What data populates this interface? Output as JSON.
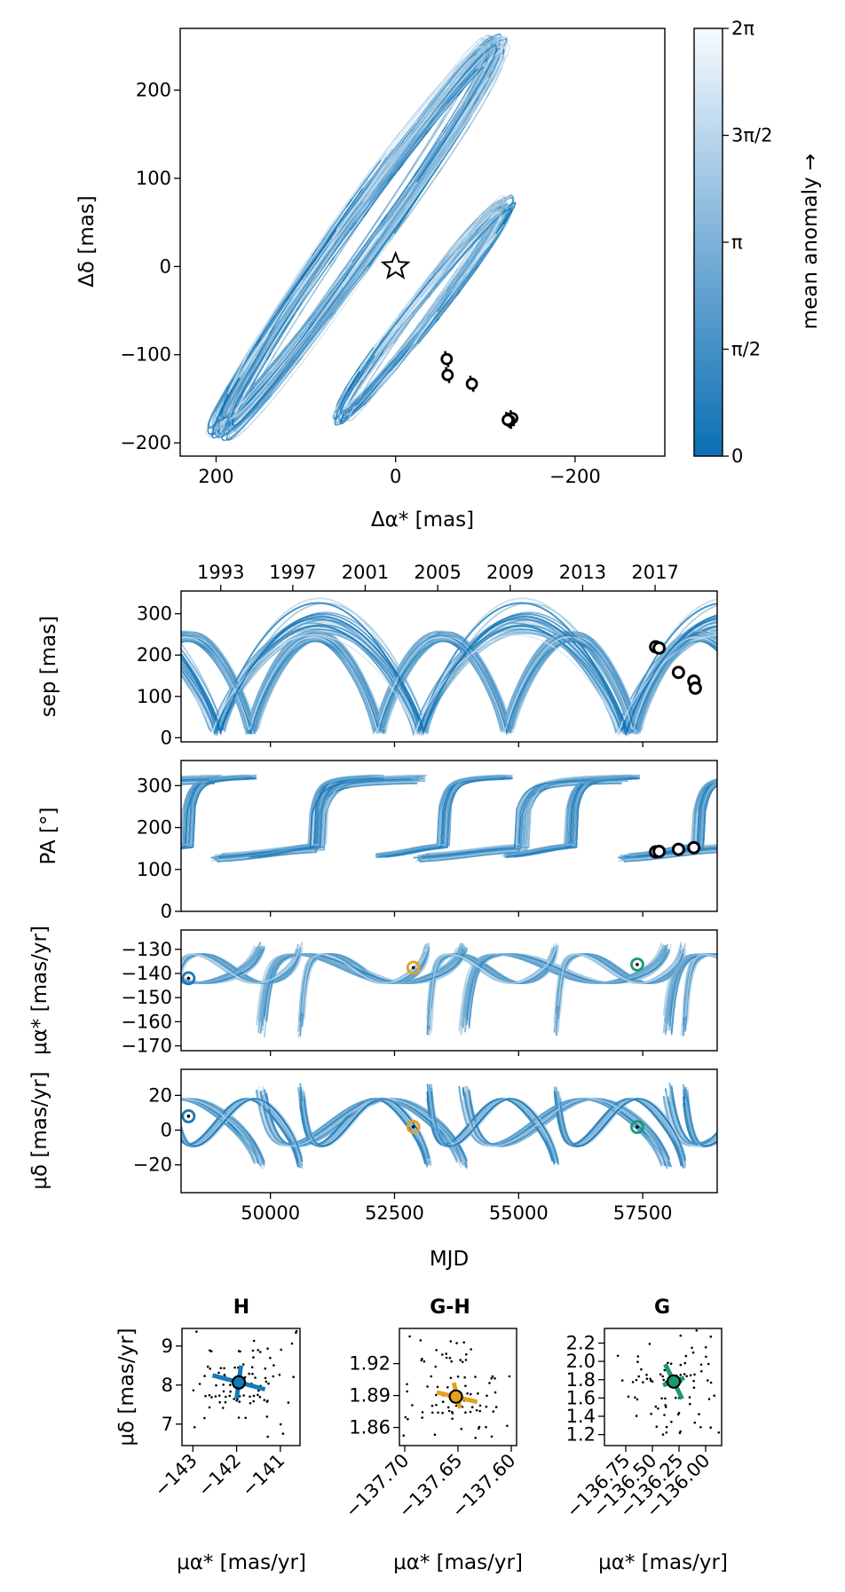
{
  "colors": {
    "orbit_dark": "#0a6fb3",
    "orbit_light": "#e9f2f9",
    "hip_blue": "#1779b8",
    "gh_orange": "#e5a11c",
    "gaia_green": "#1a9a72"
  },
  "chart_data": [
    {
      "id": "sky",
      "type": "line",
      "xlabel": "Δα* [mas]",
      "ylabel": "Δδ [mas]",
      "xlim": [
        240,
        -300
      ],
      "ylim": [
        -215,
        270
      ],
      "xticks": [
        "200",
        "0",
        "−200"
      ],
      "xtick_values": [
        200,
        0,
        -200
      ],
      "yticks": [
        "200",
        "100",
        "0",
        "−100",
        "−200"
      ],
      "ytick_values": [
        200,
        100,
        0,
        -100,
        -200
      ],
      "star": [
        0,
        0
      ],
      "astrometry_points": [
        [
          -57,
          -105
        ],
        [
          -58,
          -123
        ],
        [
          -85,
          -133
        ],
        [
          -130,
          -172
        ],
        [
          -127,
          -175
        ],
        [
          -125,
          -174
        ]
      ]
    },
    {
      "id": "colorbar",
      "type": "heatmap",
      "label": "mean anomaly →",
      "range": [
        0,
        6.2832
      ],
      "ticks": [
        "2π",
        "3π/2",
        "π",
        "π/2",
        "0"
      ],
      "tick_values": [
        6.2832,
        4.7124,
        3.1416,
        1.5708,
        0
      ]
    },
    {
      "id": "sep",
      "type": "line",
      "ylabel": "sep [mas]",
      "xlim": [
        48200,
        59000
      ],
      "ylim": [
        -10,
        355
      ],
      "yticks": [
        "300",
        "200",
        "100",
        "0"
      ],
      "ytick_values": [
        300,
        200,
        100,
        0
      ],
      "top_axis_ticks": [
        "1993",
        "1997",
        "2001",
        "2005",
        "2009",
        "2013",
        "2017"
      ],
      "top_axis_mjd": [
        49000,
        50450,
        51910,
        53370,
        54830,
        56290,
        57750
      ],
      "points": [
        [
          57760,
          220
        ],
        [
          57830,
          217
        ],
        [
          58220,
          158
        ],
        [
          58530,
          137
        ],
        [
          58560,
          120
        ]
      ]
    },
    {
      "id": "pa",
      "type": "line",
      "ylabel": "PA [°]",
      "xlim": [
        48200,
        59000
      ],
      "ylim": [
        0,
        360
      ],
      "yticks": [
        "300",
        "200",
        "100",
        "0"
      ],
      "ytick_values": [
        300,
        200,
        100,
        0
      ],
      "points": [
        [
          57760,
          142
        ],
        [
          57830,
          143
        ],
        [
          58220,
          148
        ],
        [
          58530,
          152
        ]
      ]
    },
    {
      "id": "pmra",
      "type": "line",
      "ylabel": "μα* [mas/yr]",
      "xlim": [
        48200,
        59000
      ],
      "ylim": [
        -172,
        -122
      ],
      "yticks": [
        "−130",
        "−140",
        "−150",
        "−160",
        "−170"
      ],
      "ytick_values": [
        -130,
        -140,
        -150,
        -160,
        -170
      ],
      "points": [
        {
          "name": "H",
          "x": 48350,
          "y": -142
        },
        {
          "name": "G-H",
          "x": 52880,
          "y": -137.6
        },
        {
          "name": "G",
          "x": 57390,
          "y": -136.3
        }
      ]
    },
    {
      "id": "pmdec",
      "type": "line",
      "ylabel": "μδ [mas/yr]",
      "xlabel": "MJD",
      "xlim": [
        48200,
        59000
      ],
      "ylim": [
        -36,
        35
      ],
      "xticks": [
        "50000",
        "52500",
        "55000",
        "57500"
      ],
      "xtick_values": [
        50000,
        52500,
        55000,
        57500
      ],
      "yticks": [
        "20",
        "0",
        "−20"
      ],
      "ytick_values": [
        20,
        0,
        -20
      ],
      "points": [
        {
          "name": "H",
          "x": 48350,
          "y": 8
        },
        {
          "name": "G-H",
          "x": 52880,
          "y": 1.9
        },
        {
          "name": "G",
          "x": 57390,
          "y": 1.8
        }
      ]
    },
    {
      "id": "hip",
      "type": "scatter",
      "title": "H",
      "xlabel": "μα* [mas/yr]",
      "ylabel": "μδ [mas/yr]",
      "xlim": [
        -143.25,
        -140.55
      ],
      "ylim": [
        6.45,
        9.45
      ],
      "xticks": [
        "−143",
        "−142",
        "−141"
      ],
      "xtick_values": [
        -143,
        -142,
        -141
      ],
      "yticks": [
        "9",
        "8",
        "7"
      ],
      "ytick_values": [
        9,
        8,
        7
      ],
      "measurement": [
        -141.95,
        8.07
      ],
      "error_bars": [
        [
          -142.55,
          8.25,
          -141.35,
          7.89
        ],
        [
          -141.9,
          8.5,
          -142.0,
          7.65
        ]
      ]
    },
    {
      "id": "gh",
      "type": "scatter",
      "title": "G-H",
      "xlabel": "μα* [mas/yr]",
      "xlim": [
        -137.705,
        -137.595
      ],
      "ylim": [
        1.843,
        1.953
      ],
      "xticks": [
        "−137.70",
        "−137.65",
        "−137.60"
      ],
      "xtick_values": [
        -137.7,
        -137.65,
        -137.6
      ],
      "yticks": [
        "1.92",
        "1.89",
        "1.86"
      ],
      "ytick_values": [
        1.92,
        1.89,
        1.86
      ],
      "measurement": [
        -137.652,
        1.889
      ],
      "error_bars": [
        [
          -137.67,
          1.893,
          -137.632,
          1.884
        ],
        [
          -137.654,
          1.902,
          -137.648,
          1.878
        ]
      ]
    },
    {
      "id": "gaia",
      "type": "scatter",
      "title": "G",
      "xlabel": "μα* [mas/yr]",
      "xlim": [
        -136.95,
        -135.85
      ],
      "ylim": [
        1.08,
        2.36
      ],
      "xticks": [
        "−136.75",
        "−136.50",
        "−136.25",
        "−136.00"
      ],
      "xtick_values": [
        -136.75,
        -136.5,
        -136.25,
        -136.0
      ],
      "yticks": [
        "2.2",
        "2.0",
        "1.8",
        "1.6",
        "1.4",
        "1.2"
      ],
      "ytick_values": [
        2.2,
        2.0,
        1.8,
        1.6,
        1.4,
        1.2
      ],
      "measurement": [
        -136.3,
        1.78
      ],
      "error_bars": [
        [
          -136.38,
          1.97,
          -136.22,
          1.59
        ],
        [
          -136.4,
          1.74,
          -136.2,
          1.82
        ]
      ]
    }
  ]
}
